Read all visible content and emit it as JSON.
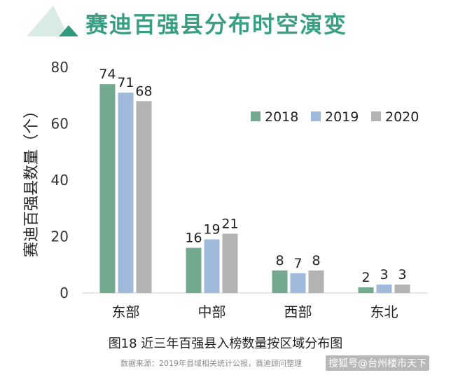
{
  "header": {
    "title": "赛迪百强县分布时空演变"
  },
  "chart_data": {
    "type": "bar",
    "ylabel": "赛迪百强县数量（个）",
    "ylim": [
      0,
      80
    ],
    "yticks": [
      0,
      20,
      40,
      60,
      80
    ],
    "categories": [
      "东部",
      "中部",
      "西部",
      "东北"
    ],
    "series": [
      {
        "name": "2018",
        "values": [
          74,
          16,
          8,
          2
        ],
        "color": "#72a98f"
      },
      {
        "name": "2019",
        "values": [
          71,
          19,
          7,
          3
        ],
        "color": "#9fbadb"
      },
      {
        "name": "2020",
        "values": [
          68,
          21,
          8,
          3
        ],
        "color": "#b3b3b3"
      }
    ],
    "legend_position": "top-right",
    "grid": false
  },
  "caption": "图18 近三年百强县入榜数量按区域分布图",
  "source": "数据来源：2019年县域相关统计公报，赛迪顾问整理",
  "watermark": "搜狐号@台州楼市天下"
}
